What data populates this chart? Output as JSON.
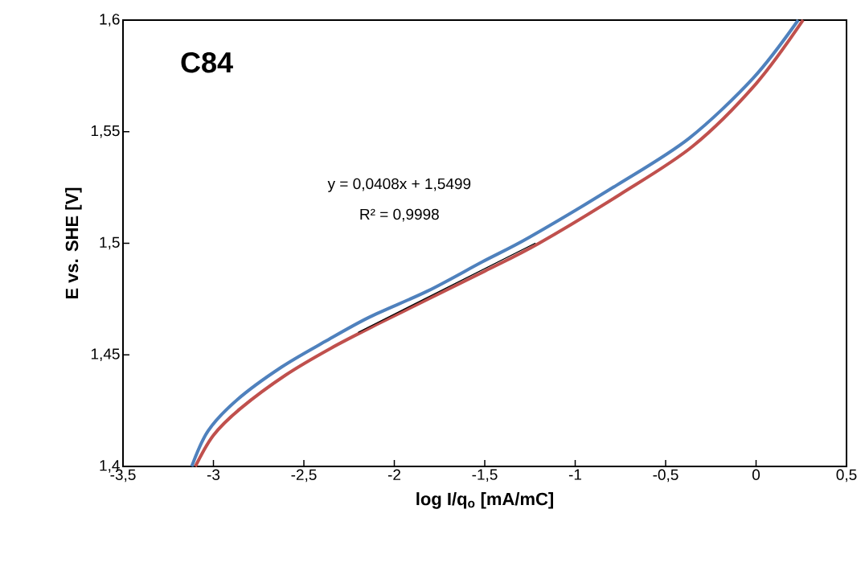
{
  "chart_data": {
    "type": "line",
    "xlabel": "log I/q$_{o}$ [mA/mC]",
    "ylabel": "E vs. SHE [V]",
    "annotations": [
      "C84",
      "y = 0,0408x + 1,5499",
      "R² = 0,9998"
    ],
    "xlim": [
      -3.5,
      0.5
    ],
    "xticks": [
      {
        "value": -3.5,
        "label": "-3,5"
      },
      {
        "value": -3,
        "label": "-3"
      },
      {
        "value": -2.5,
        "label": "-2,5"
      },
      {
        "value": -2,
        "label": "-2"
      },
      {
        "value": -1.5,
        "label": "-1,5"
      },
      {
        "value": -1,
        "label": "-1"
      },
      {
        "value": -0.5,
        "label": "-0,5"
      },
      {
        "value": 0,
        "label": "0"
      },
      {
        "value": 0.5,
        "label": "0,5"
      }
    ],
    "ylim": [
      1.4,
      1.6
    ],
    "yticks": [
      {
        "value": 1.4,
        "label": "1,4"
      },
      {
        "value": 1.45,
        "label": "1,45"
      },
      {
        "value": 1.5,
        "label": "1,5"
      },
      {
        "value": 1.55,
        "label": "1,55"
      },
      {
        "value": 1.6,
        "label": "1,6"
      }
    ],
    "marker": "none",
    "series": [
      {
        "color": "#c0504d",
        "x": [
          -3.1,
          -3.0,
          -2.85,
          -2.6,
          -2.35,
          -2.1,
          -1.8,
          -1.5,
          -1.2,
          -0.75,
          -0.35,
          0.0,
          0.26
        ],
        "values": [
          1.4,
          1.414,
          1.426,
          1.441,
          1.453,
          1.4635,
          1.4755,
          1.4875,
          1.5,
          1.522,
          1.5435,
          1.5715,
          1.6
        ]
      },
      {
        "color": "#4f81bd",
        "x": [
          -3.12,
          -3.029,
          -2.867,
          -2.624,
          -2.382,
          -2.14,
          -1.816,
          -1.513,
          -1.253,
          -0.771,
          -0.371,
          -0.016,
          0.233
        ],
        "values": [
          1.4,
          1.416,
          1.43,
          1.4445,
          1.456,
          1.4668,
          1.4786,
          1.4917,
          1.5027,
          1.526,
          1.547,
          1.574,
          1.6
        ]
      },
      {
        "type": "line",
        "color": "#000000",
        "x": [
          -2.2,
          -1.22
        ],
        "values": [
          1.4601,
          1.5001
        ]
      }
    ]
  }
}
